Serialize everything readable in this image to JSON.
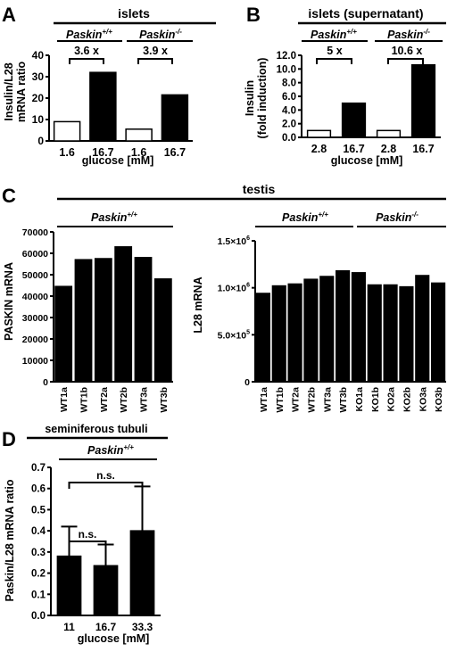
{
  "chart_data": [
    {
      "panel_label": "A",
      "type": "bar",
      "title": "islets",
      "groups": [
        {
          "label": "Paskin",
          "sup": "+/+",
          "fold_label": "3.6 x"
        },
        {
          "label": "Paskin",
          "sup": "-/-",
          "fold_label": "3.9 x"
        }
      ],
      "categories": [
        "1.6",
        "16.7",
        "1.6",
        "16.7"
      ],
      "values": [
        9,
        32,
        5.5,
        21.5
      ],
      "fills": [
        "#ffffff",
        "#000000",
        "#ffffff",
        "#000000"
      ],
      "ylabel_lines": [
        "Insulin/L28",
        "mRNA ratio"
      ],
      "xlabel": "glucose [mM]",
      "ylim": [
        0,
        40
      ],
      "yticks": [
        "0",
        "10",
        "20",
        "30",
        "40"
      ]
    },
    {
      "panel_label": "B",
      "type": "bar",
      "title": "islets (supernatant)",
      "groups": [
        {
          "label": "Paskin",
          "sup": "+/+",
          "fold_label": "5 x"
        },
        {
          "label": "Paskin",
          "sup": "-/-",
          "fold_label": "10.6 x"
        }
      ],
      "categories": [
        "2.8",
        "16.7",
        "2.8",
        "16.7"
      ],
      "values": [
        1.0,
        5.0,
        1.0,
        10.6
      ],
      "fills": [
        "#ffffff",
        "#000000",
        "#ffffff",
        "#000000"
      ],
      "ylabel_lines": [
        "Insulin",
        "(fold induction)"
      ],
      "xlabel": "glucose [mM]",
      "ylim": [
        0,
        12
      ],
      "yticks": [
        "0.0",
        "2.0",
        "4.0",
        "6.0",
        "8.0",
        "10.0",
        "12.0"
      ]
    },
    {
      "panel_label": "C",
      "type": "bar",
      "title": "testis",
      "group_label": {
        "label": "Paskin",
        "sup": "+/+"
      },
      "categories": [
        "WT1a",
        "WT1b",
        "WT2a",
        "WT2b",
        "WT3a",
        "WT3b"
      ],
      "values": [
        44500,
        57000,
        57500,
        63000,
        58000,
        48000
      ],
      "ylabel": "PASKIN mRNA",
      "ylim": [
        0,
        70000
      ],
      "yticks": [
        "0",
        "10000",
        "20000",
        "30000",
        "40000",
        "50000",
        "60000",
        "70000"
      ]
    },
    {
      "type": "bar",
      "groups": [
        {
          "label": "Paskin",
          "sup": "+/+"
        },
        {
          "label": "Paskin",
          "sup": "-/-"
        }
      ],
      "categories": [
        "WT1a",
        "WT1b",
        "WT2a",
        "WT2b",
        "WT3a",
        "WT3b",
        "KO1a",
        "KO1b",
        "KO2a",
        "KO2b",
        "KO3a",
        "KO3b"
      ],
      "values": [
        940000,
        1020000,
        1040000,
        1090000,
        1120000,
        1180000,
        1160000,
        1030000,
        1030000,
        1010000,
        1130000,
        1050000
      ],
      "ylabel": "L28 mRNA",
      "ylim": [
        0,
        1500000
      ],
      "yticks": [
        {
          "base": "0",
          "exp": ""
        },
        {
          "base": "5.0×10",
          "exp": "5"
        },
        {
          "base": "1.0×10",
          "exp": "6"
        },
        {
          "base": "1.5×10",
          "exp": "6"
        }
      ]
    },
    {
      "panel_label": "D",
      "type": "bar",
      "title": "seminiferous tubuli",
      "group_label": {
        "label": "Paskin",
        "sup": "+/+"
      },
      "categories": [
        "11",
        "16.7",
        "33.3"
      ],
      "values": [
        0.28,
        0.235,
        0.4
      ],
      "errors": [
        0.14,
        0.1,
        0.21
      ],
      "ylabel": "Paskin/L28 mRNA ratio",
      "xlabel": "glucose [mM]",
      "ylim": [
        0,
        0.7
      ],
      "yticks": [
        "0.0",
        "0.1",
        "0.2",
        "0.3",
        "0.4",
        "0.5",
        "0.6",
        "0.7"
      ],
      "brackets": [
        {
          "from": 0,
          "to": 1,
          "text": "n.s."
        },
        {
          "from": 0,
          "to": 2,
          "text": "n.s."
        }
      ]
    }
  ]
}
